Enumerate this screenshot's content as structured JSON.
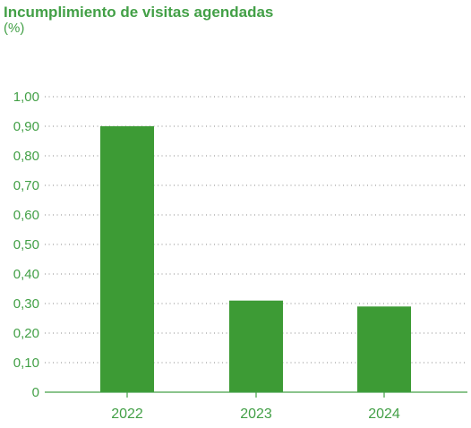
{
  "chart_data": {
    "type": "bar",
    "title": "Incumplimiento de visitas agendadas",
    "subtitle": "(%)",
    "categories": [
      "2022",
      "2023",
      "2024"
    ],
    "values": [
      0.9,
      0.31,
      0.29
    ],
    "ylim": [
      0,
      1.0
    ],
    "yticks": [
      "0",
      "0,10",
      "0,20",
      "0,30",
      "0,40",
      "0,50",
      "0,60",
      "0,70",
      "0,80",
      "0,90",
      "1,00"
    ],
    "grid": true,
    "bar_color": "#3d9b35",
    "text_color": "#43a047"
  }
}
